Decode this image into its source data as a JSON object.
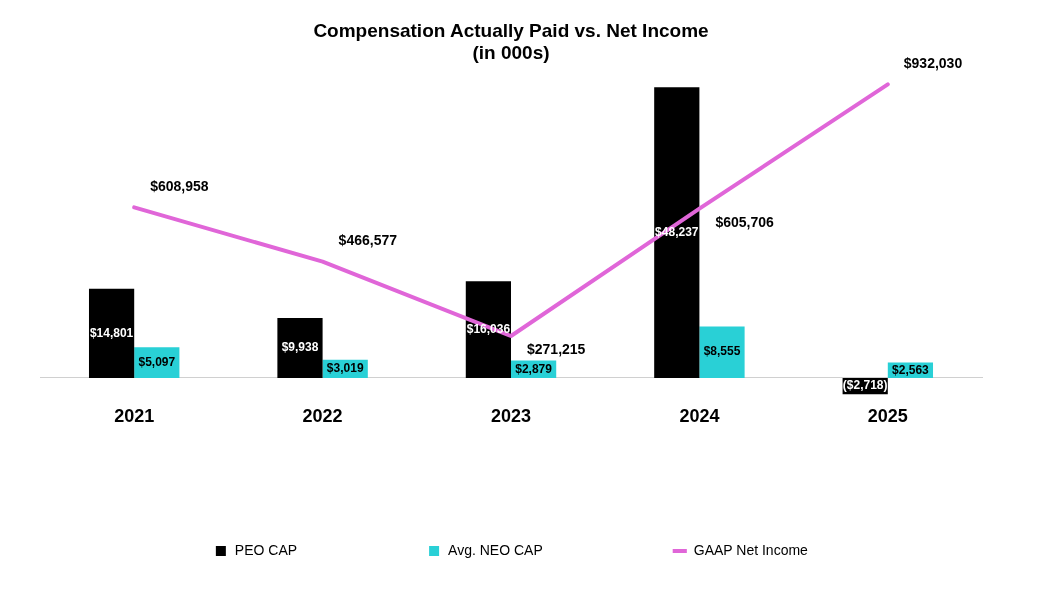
{
  "chart_data": {
    "type": "bar",
    "title": "Compensation Actually Paid vs. Net Income\n(in 000s)",
    "categories": [
      "2021",
      "2022",
      "2023",
      "2024",
      "2025"
    ],
    "series": [
      {
        "name": "PEO CAP",
        "color": "#000000",
        "values": [
          14801,
          9938,
          16036,
          48237,
          -2718
        ],
        "value_labels": [
          "$14,801",
          "$9,938",
          "$16,036",
          "$48,237",
          "($2,718)"
        ]
      },
      {
        "name": "Avg. NEO CAP",
        "color": "#29d0d6",
        "values": [
          5097,
          3019,
          2879,
          8555,
          2563
        ],
        "value_labels": [
          "$5,097",
          "$3,019",
          "$2,879",
          "$8,555",
          "$2,563"
        ]
      },
      {
        "name": "GAAP Net Income",
        "type": "line",
        "axis": "y2",
        "color": "#e066d8",
        "values": [
          608958,
          466577,
          271215,
          605706,
          932030
        ],
        "value_labels": [
          "$608,958",
          "$466,577",
          "$271,215",
          "$605,706",
          "$932,030"
        ]
      }
    ],
    "tick_labels": "x",
    "legend": "bottom",
    "marker": "none"
  }
}
